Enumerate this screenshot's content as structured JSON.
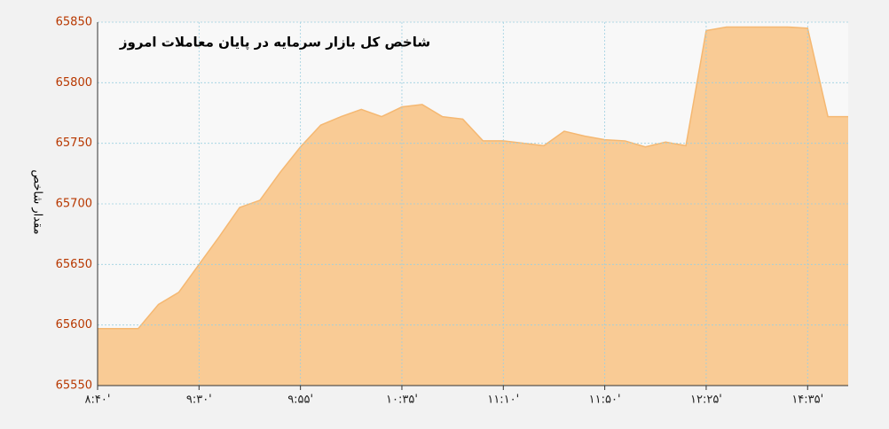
{
  "chart_data": {
    "type": "area",
    "title": "شاخص کل بازار سرمایه در پایان معاملات امروز",
    "y_label": "مقدار شاخص",
    "categories": [
      "۸:۴۰'",
      null,
      null,
      null,
      null,
      "۹:۳۰'",
      null,
      null,
      null,
      null,
      "۹:۵۵'",
      null,
      null,
      null,
      null,
      "۱۰:۳۵'",
      null,
      null,
      null,
      null,
      "۱۱:۱۰'",
      null,
      null,
      null,
      null,
      "۱۱:۵۰'",
      null,
      null,
      null,
      null,
      "۱۲:۲۵'",
      null,
      null,
      null,
      null,
      "۱۴:۳۵'",
      null,
      null
    ],
    "values": [
      65597,
      65597,
      65597,
      65617,
      65627,
      65650,
      65673,
      65697,
      65703,
      65726,
      65747,
      65765,
      65772,
      65778,
      65772,
      65780,
      65782,
      65772,
      65770,
      65752,
      65752,
      65750,
      65748,
      65760,
      65756,
      65753,
      65752,
      65747,
      65751,
      65748,
      65843,
      65846,
      65846,
      65846,
      65846,
      65845,
      65772,
      65772
    ],
    "color": "#f9cb95",
    "line_color": "#f5b872",
    "ylim": [
      65550,
      65850
    ],
    "yticks": [
      65550,
      65600,
      65650,
      65700,
      65750,
      65800,
      65850
    ],
    "grid": true
  }
}
